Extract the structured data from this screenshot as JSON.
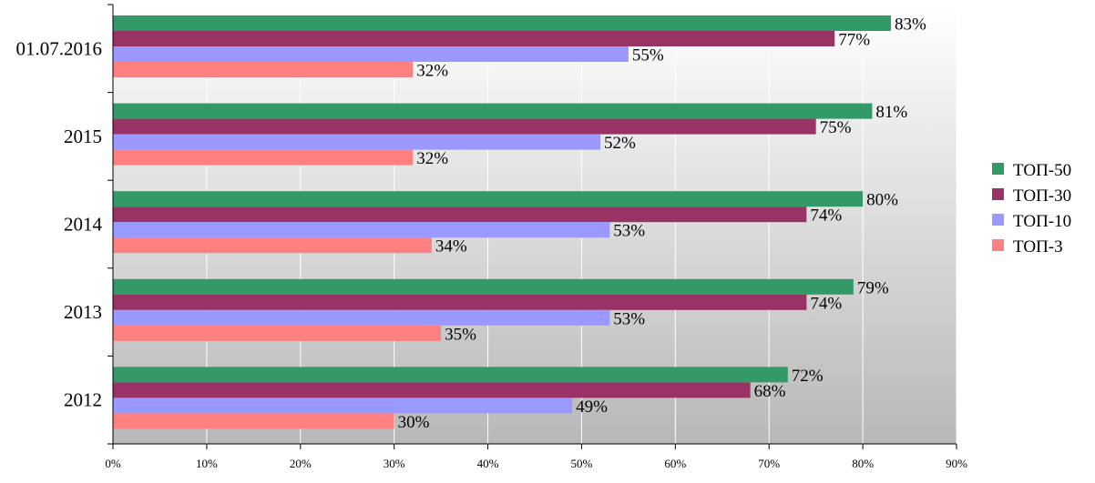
{
  "chart_data": {
    "type": "bar",
    "orientation": "horizontal",
    "categories": [
      "01.07.2016",
      "2015",
      "2014",
      "2013",
      "2012"
    ],
    "series": [
      {
        "name": "ТОП-50",
        "color": "#339966",
        "values": [
          83,
          81,
          80,
          79,
          72
        ],
        "labels": [
          "83%",
          "81%",
          "80%",
          "79%",
          "72%"
        ]
      },
      {
        "name": "ТОП-30",
        "color": "#993366",
        "values": [
          77,
          75,
          74,
          74,
          68
        ],
        "labels": [
          "77%",
          "75%",
          "74%",
          "74%",
          "68%"
        ]
      },
      {
        "name": "ТОП-10",
        "color": "#9999ff",
        "values": [
          55,
          52,
          53,
          53,
          49
        ],
        "labels": [
          "55%",
          "52%",
          "53%",
          "53%",
          "49%"
        ]
      },
      {
        "name": "ТОП-3",
        "color": "#ff8080",
        "values": [
          32,
          32,
          34,
          35,
          30
        ],
        "labels": [
          "32%",
          "32%",
          "34%",
          "35%",
          "30%"
        ]
      }
    ],
    "x_ticks": [
      "0%",
      "10%",
      "20%",
      "30%",
      "40%",
      "50%",
      "60%",
      "70%",
      "80%",
      "90%"
    ],
    "xlim": [
      0,
      90
    ],
    "grid": "vertical",
    "legend": "right",
    "title": "",
    "xlabel": "",
    "ylabel": ""
  }
}
